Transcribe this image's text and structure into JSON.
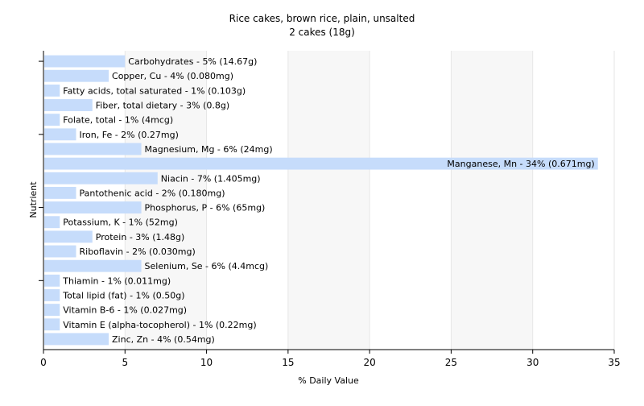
{
  "chart_data": {
    "type": "bar",
    "orientation": "horizontal",
    "title": "Rice cakes, brown rice, plain, unsalted",
    "subtitle": "2 cakes (18g)",
    "xlabel": "% Daily Value",
    "ylabel": "Nutrient",
    "xlim": [
      0,
      35
    ],
    "xticks": [
      0,
      5,
      10,
      15,
      20,
      25,
      30,
      35
    ],
    "grid": "vertical",
    "bar_color": "#c6dcfb",
    "categories": [
      "Carbohydrates",
      "Copper, Cu",
      "Fatty acids, total saturated",
      "Fiber, total dietary",
      "Folate, total",
      "Iron, Fe",
      "Magnesium, Mg",
      "Manganese, Mn",
      "Niacin",
      "Pantothenic acid",
      "Phosphorus, P",
      "Potassium, K",
      "Protein",
      "Riboflavin",
      "Selenium, Se",
      "Thiamin",
      "Total lipid (fat)",
      "Vitamin B-6",
      "Vitamin E (alpha-tocopherol)",
      "Zinc, Zn"
    ],
    "values": [
      5,
      4,
      1,
      3,
      1,
      2,
      6,
      34,
      7,
      2,
      6,
      1,
      3,
      2,
      6,
      1,
      1,
      1,
      1,
      4
    ],
    "labels": [
      "Carbohydrates - 5% (14.67g)",
      "Copper, Cu - 4% (0.080mg)",
      "Fatty acids, total saturated - 1% (0.103g)",
      "Fiber, total dietary - 3% (0.8g)",
      "Folate, total - 1% (4mcg)",
      "Iron, Fe - 2% (0.27mg)",
      "Magnesium, Mg - 6% (24mg)",
      "Manganese, Mn - 34% (0.671mg)",
      "Niacin - 7% (1.405mg)",
      "Pantothenic acid - 2% (0.180mg)",
      "Phosphorus, P - 6% (65mg)",
      "Potassium, K - 1% (52mg)",
      "Protein - 3% (1.48g)",
      "Riboflavin - 2% (0.030mg)",
      "Selenium, Se - 6% (4.4mcg)",
      "Thiamin - 1% (0.011mg)",
      "Total lipid (fat) - 1% (0.50g)",
      "Vitamin B-6 - 1% (0.027mg)",
      "Vitamin E (alpha-tocopherol) - 1% (0.22mg)",
      "Zinc, Zn - 4% (0.54mg)"
    ]
  }
}
